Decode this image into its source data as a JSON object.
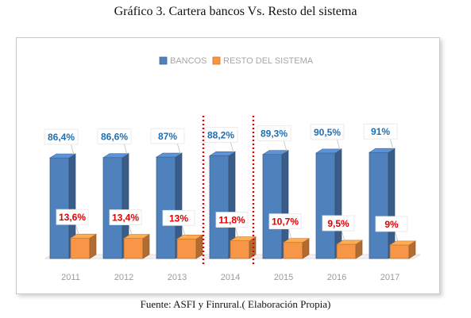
{
  "title": "Gráfico 3. Cartera bancos Vs. Resto del sistema",
  "footer": "Fuente: ASFI y Finrural.( Elaboración Propia)",
  "colors": {
    "bancos": "#4f81bd",
    "resto": "#f79646",
    "bancos_label": "#1f6fb3",
    "resto_label": "#e00000",
    "divider": "#e00000",
    "tick": "#9a9a9a"
  },
  "chart_data": {
    "type": "bar",
    "categories": [
      "2011",
      "2012",
      "2013",
      "2014",
      "2015",
      "2016",
      "2017"
    ],
    "series": [
      {
        "name": "BANCOS",
        "values": [
          86.4,
          86.6,
          87,
          88.2,
          89.3,
          90.5,
          91
        ],
        "labels": [
          "86,4%",
          "86,6%",
          "87%",
          "88,2%",
          "89,3%",
          "90,5%",
          "91%"
        ]
      },
      {
        "name": "RESTO DEL SISTEMA",
        "values": [
          13.6,
          13.4,
          13,
          11.8,
          10.7,
          9.5,
          9
        ],
        "labels": [
          "13,6%",
          "13,4%",
          "13%",
          "11,8%",
          "10,7%",
          "9,5%",
          "9%"
        ]
      }
    ],
    "ylim": [
      0,
      100
    ],
    "legend": "top",
    "grid": false,
    "dividers": [
      "2014"
    ]
  }
}
